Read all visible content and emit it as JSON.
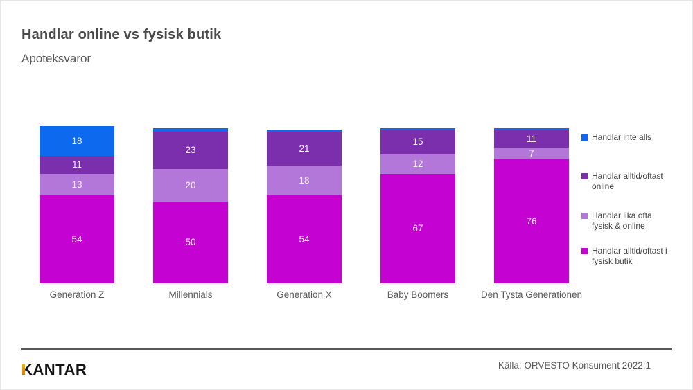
{
  "page": {
    "title": "Handlar online vs fysisk butik",
    "subtitle": "Apoteksvaror"
  },
  "chart_data": {
    "type": "bar",
    "stacked": true,
    "orientation": "vertical",
    "title": "Handlar online vs fysisk butik",
    "subtitle": "Apoteksvaror",
    "categories": [
      "Generation Z",
      "Millennials",
      "Generation X",
      "Baby Boomers",
      "Den Tysta Generationen"
    ],
    "series": [
      {
        "name": "Handlar inte alls",
        "color": "#0d6aef",
        "values": [
          18,
          2,
          1,
          1,
          1
        ]
      },
      {
        "name": "Handlar alltid/oftast online",
        "color": "#7c2fad",
        "values": [
          11,
          23,
          21,
          15,
          11
        ]
      },
      {
        "name": "Handlar lika ofta fysisk & online",
        "color": "#b377d9",
        "values": [
          13,
          20,
          18,
          12,
          7
        ]
      },
      {
        "name": "Handlar alltid/oftast i fysisk butik",
        "color": "#c402d1",
        "values": [
          54,
          50,
          54,
          67,
          76
        ]
      }
    ],
    "value_label_min": 5,
    "value_label_color": "#ffffff",
    "legend_position": "right",
    "grid": false,
    "axes_visible": false,
    "ylim": [
      0,
      100
    ]
  },
  "footer": {
    "brand": "KANTAR",
    "brand_accent_color": "#eda500",
    "source": "Källa: ORVESTO Konsument 2022:1"
  }
}
